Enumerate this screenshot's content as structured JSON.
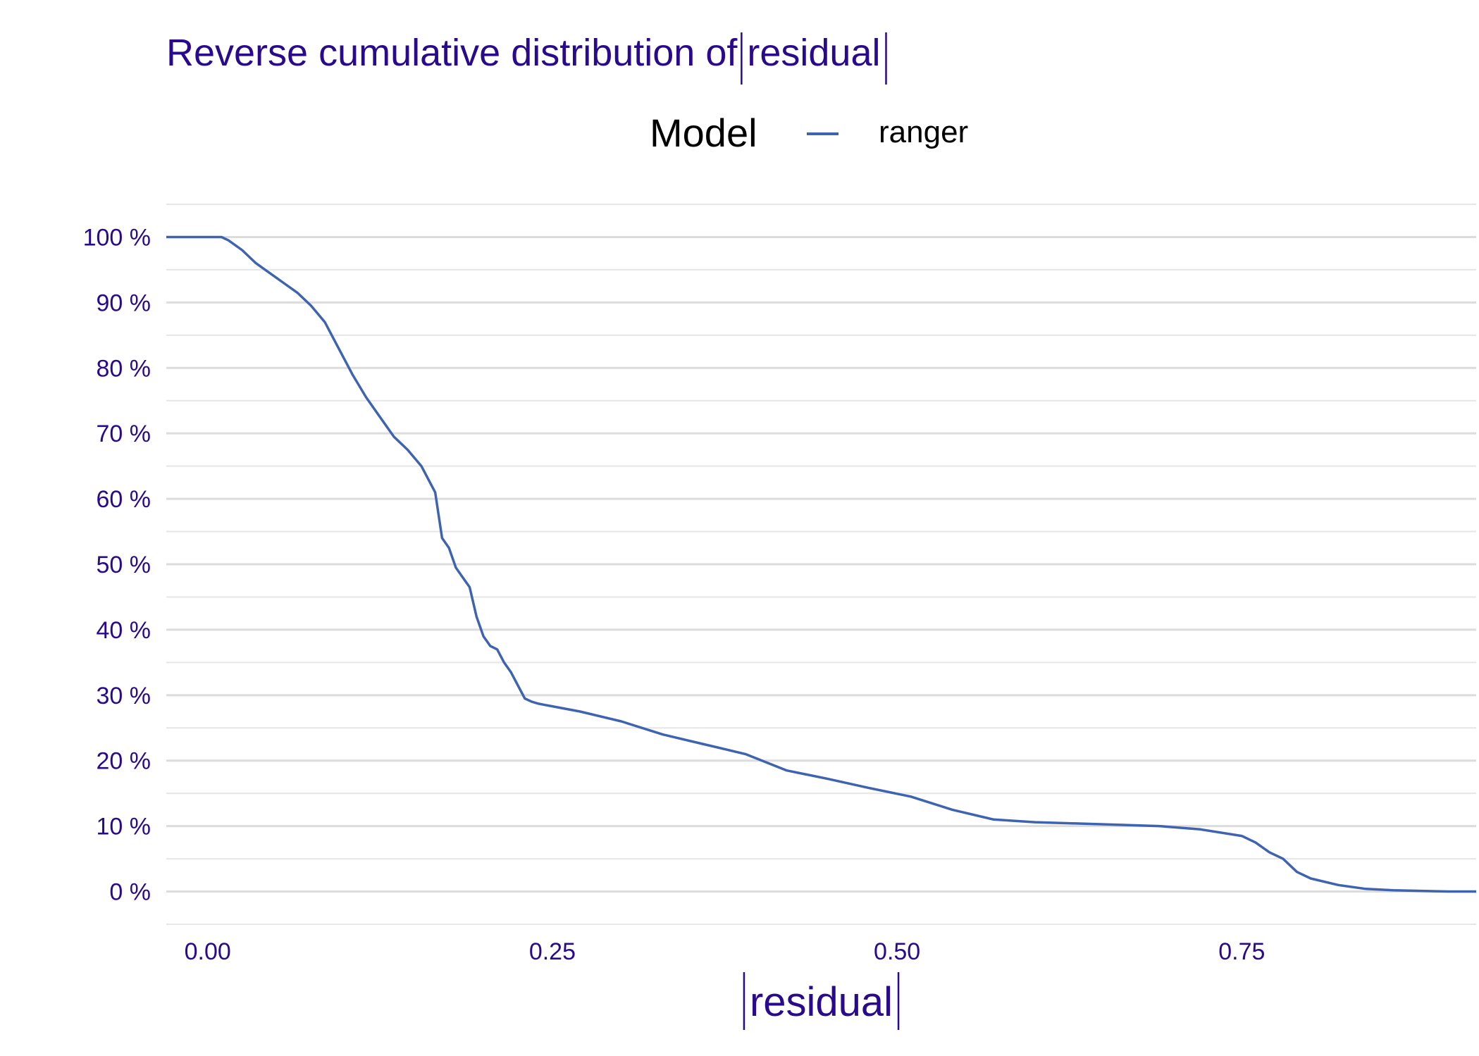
{
  "chart_data": {
    "type": "line",
    "title_prefix": "Reverse cumulative distribution of ",
    "title_math": "residual",
    "xlabel_math": "residual",
    "ylabel": "",
    "legend": {
      "title": "Model",
      "position": "top",
      "entries": [
        {
          "name": "ranger",
          "color": "#3e63b0"
        }
      ]
    },
    "xlim": [
      -0.03,
      0.92
    ],
    "ylim": [
      -0.05,
      1.05
    ],
    "x_ticks": [
      0,
      0.25,
      0.5,
      0.75
    ],
    "x_tick_labels": [
      "0.00",
      "0.25",
      "0.50",
      "0.75"
    ],
    "y_ticks": [
      0,
      0.1,
      0.2,
      0.3,
      0.4,
      0.5,
      0.6,
      0.7,
      0.8,
      0.9,
      1.0
    ],
    "y_tick_labels": [
      "0 %",
      "10 %",
      "20 %",
      "30 %",
      "40 %",
      "50 %",
      "60 %",
      "70 %",
      "80 %",
      "90 %",
      "100 %"
    ],
    "grid": true,
    "series": [
      {
        "name": "ranger",
        "color": "#3e63b0",
        "x": [
          -0.03,
          0.0,
          0.01,
          0.015,
          0.025,
          0.035,
          0.045,
          0.055,
          0.065,
          0.075,
          0.085,
          0.095,
          0.105,
          0.115,
          0.125,
          0.135,
          0.145,
          0.155,
          0.165,
          0.17,
          0.175,
          0.18,
          0.185,
          0.19,
          0.195,
          0.2,
          0.205,
          0.21,
          0.215,
          0.22,
          0.225,
          0.23,
          0.235,
          0.24,
          0.245,
          0.25,
          0.27,
          0.3,
          0.33,
          0.36,
          0.39,
          0.42,
          0.45,
          0.48,
          0.51,
          0.54,
          0.57,
          0.6,
          0.63,
          0.66,
          0.69,
          0.72,
          0.75,
          0.76,
          0.77,
          0.78,
          0.79,
          0.8,
          0.82,
          0.84,
          0.86,
          0.88,
          0.9,
          0.92
        ],
        "y": [
          1.0,
          1.0,
          1.0,
          0.995,
          0.98,
          0.96,
          0.945,
          0.93,
          0.915,
          0.895,
          0.87,
          0.83,
          0.79,
          0.755,
          0.725,
          0.695,
          0.675,
          0.65,
          0.61,
          0.54,
          0.525,
          0.495,
          0.48,
          0.465,
          0.42,
          0.39,
          0.375,
          0.37,
          0.35,
          0.335,
          0.315,
          0.295,
          0.29,
          0.287,
          0.285,
          0.283,
          0.275,
          0.26,
          0.24,
          0.225,
          0.21,
          0.185,
          0.172,
          0.158,
          0.145,
          0.125,
          0.11,
          0.106,
          0.104,
          0.102,
          0.1,
          0.095,
          0.085,
          0.075,
          0.06,
          0.05,
          0.03,
          0.02,
          0.01,
          0.004,
          0.002,
          0.001,
          0.0,
          0.0
        ]
      }
    ]
  }
}
